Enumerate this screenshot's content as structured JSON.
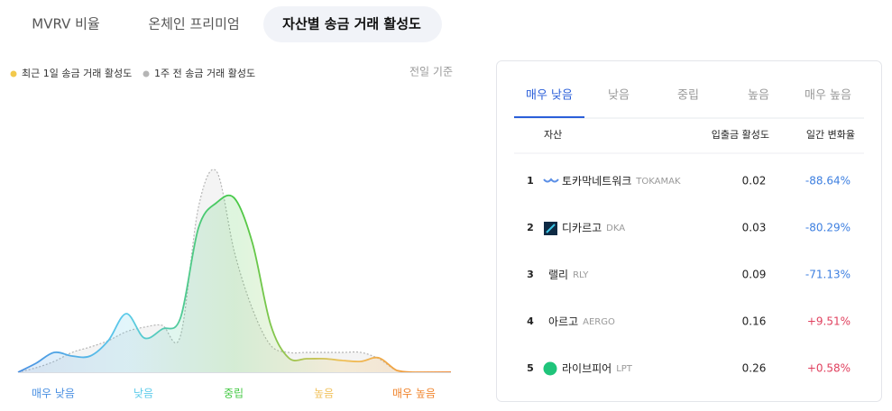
{
  "top_tabs": [
    "MVRV 비율",
    "온체인 프리미엄",
    "자산별 송금 거래 활성도"
  ],
  "active_top_tab": 2,
  "chart_data": {
    "type": "area",
    "note": "전일 기준",
    "x": [
      0,
      1,
      2,
      3,
      4,
      5,
      6,
      7,
      8,
      9,
      10,
      11,
      12,
      13,
      14,
      15,
      16,
      17,
      18,
      19,
      20,
      21,
      22,
      23,
      24
    ],
    "xlim": [
      0,
      24
    ],
    "ylim": [
      0,
      240
    ],
    "series": [
      {
        "name": "최근 1일 송금 거래 활성도",
        "color": "#f2c94c",
        "values": [
          0,
          10,
          22,
          18,
          18,
          35,
          65,
          38,
          48,
          60,
          160,
          188,
          193,
          143,
          53,
          16,
          15,
          15,
          13,
          12,
          16,
          2,
          0,
          0,
          0
        ]
      },
      {
        "name": "1주 전 송금 거래 활성도",
        "color": "#b5b5b5",
        "values": [
          0,
          5,
          12,
          22,
          28,
          35,
          45,
          50,
          52,
          40,
          183,
          223,
          133,
          70,
          30,
          22,
          22,
          22,
          22,
          22,
          15,
          2,
          0,
          0,
          0
        ]
      }
    ],
    "bands": [
      "매우 낮음",
      "낮음",
      "중립",
      "높음",
      "매우 높음"
    ],
    "band_colors": [
      "#4a90e2",
      "#5ccbea",
      "#45c945",
      "#f0c15a",
      "#f0842c"
    ]
  },
  "table": {
    "tabs": [
      "매우 낮음",
      "낮음",
      "중립",
      "높음",
      "매우 높음"
    ],
    "active_tab": 0,
    "headers": [
      "자산",
      "입출금 활성도",
      "일간 변화율"
    ],
    "rows": [
      {
        "rank": 1,
        "name": "토카막네트워크",
        "ticker": "TOKAMAK",
        "activity": 0.02,
        "change": "-88.64%",
        "color": "#3d7fe0"
      },
      {
        "rank": 2,
        "name": "디카르고",
        "ticker": "DKA",
        "activity": 0.03,
        "change": "-80.29%",
        "color": "#3d7fe0"
      },
      {
        "rank": 3,
        "name": "랠리",
        "ticker": "RLY",
        "activity": 0.09,
        "change": "-71.13%",
        "color": "#3d7fe0"
      },
      {
        "rank": 4,
        "name": "아르고",
        "ticker": "AERGO",
        "activity": 0.16,
        "change": "+9.51%",
        "color": "#e0405e"
      },
      {
        "rank": 5,
        "name": "라이브피어",
        "ticker": "LPT",
        "activity": 0.26,
        "change": "+0.58%",
        "color": "#e0405e"
      }
    ]
  }
}
